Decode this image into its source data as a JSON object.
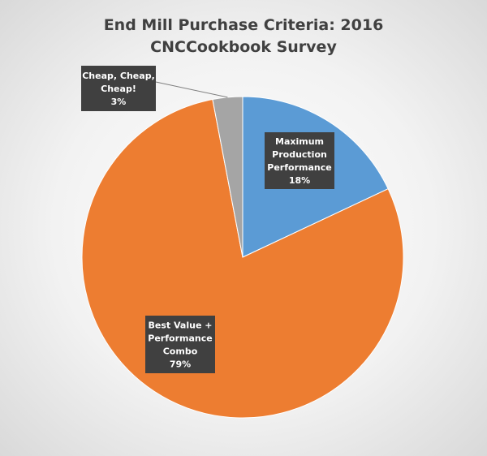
{
  "chart_data": {
    "type": "pie",
    "title": [
      "End Mill Purchase Criteria: 2016",
      "CNCCookbook Survey"
    ],
    "start_angle_deg": 0,
    "direction": "clockwise",
    "slices": [
      {
        "label": [
          "Maximum",
          "Production",
          "Performance"
        ],
        "value": 18,
        "value_label": "18%",
        "color": "#5b9bd5"
      },
      {
        "label": [
          "Best Value +",
          "Performance",
          "Combo"
        ],
        "value": 79,
        "value_label": "79%",
        "color": "#ed7d31"
      },
      {
        "label": [
          "Cheap, Cheap,",
          "Cheap!"
        ],
        "value": 3,
        "value_label": "3%",
        "color": "#a5a5a5"
      }
    ],
    "label_style": {
      "box_color": "#404040",
      "text_color": "#ffffff"
    },
    "legend": "none"
  }
}
